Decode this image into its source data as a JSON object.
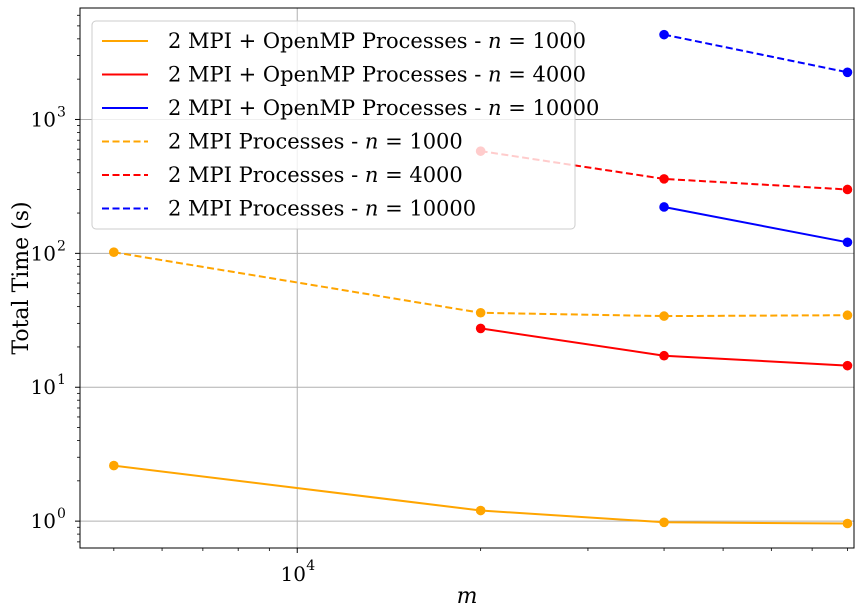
{
  "chart_data": {
    "type": "line",
    "xscale": "log",
    "yscale": "log",
    "xlabel": "m",
    "ylabel": "Total Time (s)",
    "xlim": [
      4400,
      82000
    ],
    "ylim": [
      0.63,
      6800
    ],
    "grid": true,
    "legend_position": "top-left",
    "x_ticks": [
      {
        "base": "10",
        "exp": "4",
        "value": 10000
      }
    ],
    "y_ticks": [
      {
        "base": "10",
        "exp": "0",
        "value": 1
      },
      {
        "base": "10",
        "exp": "1",
        "value": 10
      },
      {
        "base": "10",
        "exp": "2",
        "value": 100
      },
      {
        "base": "10",
        "exp": "3",
        "value": 1000
      }
    ],
    "series": [
      {
        "name": "2 MPI + OpenMP Processes - n = 1000",
        "legend_prefix": "2 MPI + OpenMP Processes - ",
        "legend_var": "n",
        "legend_value": " = 1000",
        "color": "#ffa500",
        "linestyle": "solid",
        "x": [
          5000,
          20000,
          40000,
          80000
        ],
        "y": [
          2.6,
          1.2,
          0.98,
          0.96
        ]
      },
      {
        "name": "2 MPI + OpenMP Processes - n = 4000",
        "legend_prefix": "2 MPI + OpenMP Processes - ",
        "legend_var": "n",
        "legend_value": " = 4000",
        "color": "#ff0000",
        "linestyle": "solid",
        "x": [
          20000,
          40000,
          80000
        ],
        "y": [
          27.5,
          17.2,
          14.5
        ]
      },
      {
        "name": "2 MPI + OpenMP Processes - n = 10000",
        "legend_prefix": "2 MPI + OpenMP Processes - ",
        "legend_var": "n",
        "legend_value": " = 10000",
        "color": "#0000ff",
        "linestyle": "solid",
        "x": [
          40000,
          80000
        ],
        "y": [
          222,
          121
        ]
      },
      {
        "name": "2 MPI Processes - n = 1000",
        "legend_prefix": "2 MPI Processes - ",
        "legend_var": "n",
        "legend_value": " = 1000",
        "color": "#ffa500",
        "linestyle": "dashed",
        "x": [
          5000,
          20000,
          40000,
          80000
        ],
        "y": [
          102,
          36,
          34,
          34.5
        ]
      },
      {
        "name": "2 MPI Processes - n = 4000",
        "legend_prefix": "2 MPI Processes - ",
        "legend_var": "n",
        "legend_value": " = 4000",
        "color": "#ff0000",
        "linestyle": "dashed",
        "x": [
          20000,
          40000,
          80000
        ],
        "y": [
          580,
          360,
          300
        ]
      },
      {
        "name": "2 MPI Processes - n = 10000",
        "legend_prefix": "2 MPI Processes - ",
        "legend_var": "n",
        "legend_value": " = 10000",
        "color": "#0000ff",
        "linestyle": "dashed",
        "x": [
          40000,
          80000
        ],
        "y": [
          4300,
          2250
        ]
      }
    ]
  }
}
